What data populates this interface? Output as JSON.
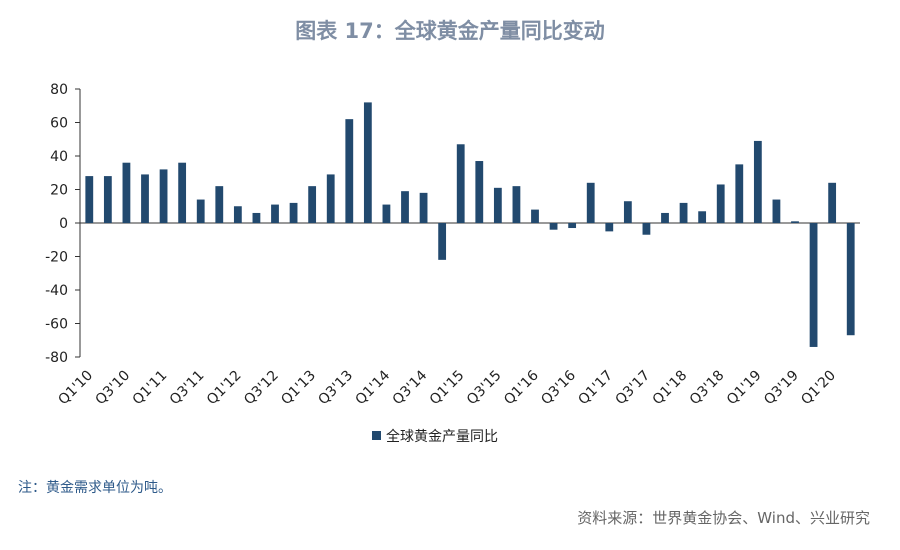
{
  "chart_data": {
    "type": "bar",
    "title": "图表 17：全球黄金产量同比变动",
    "categories": [
      "Q1'10",
      null,
      "Q3'10",
      null,
      "Q1'11",
      null,
      "Q3'11",
      null,
      "Q1'12",
      null,
      "Q3'12",
      null,
      "Q1'13",
      null,
      "Q3'13",
      null,
      "Q1'14",
      null,
      "Q3'14",
      null,
      "Q1'15",
      null,
      "Q3'15",
      null,
      "Q1'16",
      null,
      "Q3'16",
      null,
      "Q1'17",
      null,
      "Q3'17",
      null,
      "Q1'18",
      null,
      "Q3'18",
      null,
      "Q1'19",
      null,
      "Q3'19",
      null,
      "Q1'20",
      null
    ],
    "series": [
      {
        "name": "全球黄金产量同比",
        "color": "#22496e",
        "values": [
          28,
          28,
          36,
          29,
          32,
          36,
          14,
          22,
          10,
          6,
          11,
          12,
          22,
          29,
          62,
          72,
          11,
          19,
          18,
          -22,
          47,
          37,
          21,
          22,
          8,
          -4,
          -3,
          24,
          -5,
          13,
          -7,
          6,
          12,
          7,
          23,
          35,
          49,
          14,
          1,
          -74,
          24,
          -67
        ]
      }
    ],
    "ylim": [
      -80,
      80
    ],
    "yticks": [
      -80,
      -60,
      -40,
      -20,
      0,
      20,
      40,
      60,
      80
    ],
    "note": "注：黄金需求单位为吨。",
    "source": "资料来源：世界黄金协会、Wind、兴业研究"
  }
}
